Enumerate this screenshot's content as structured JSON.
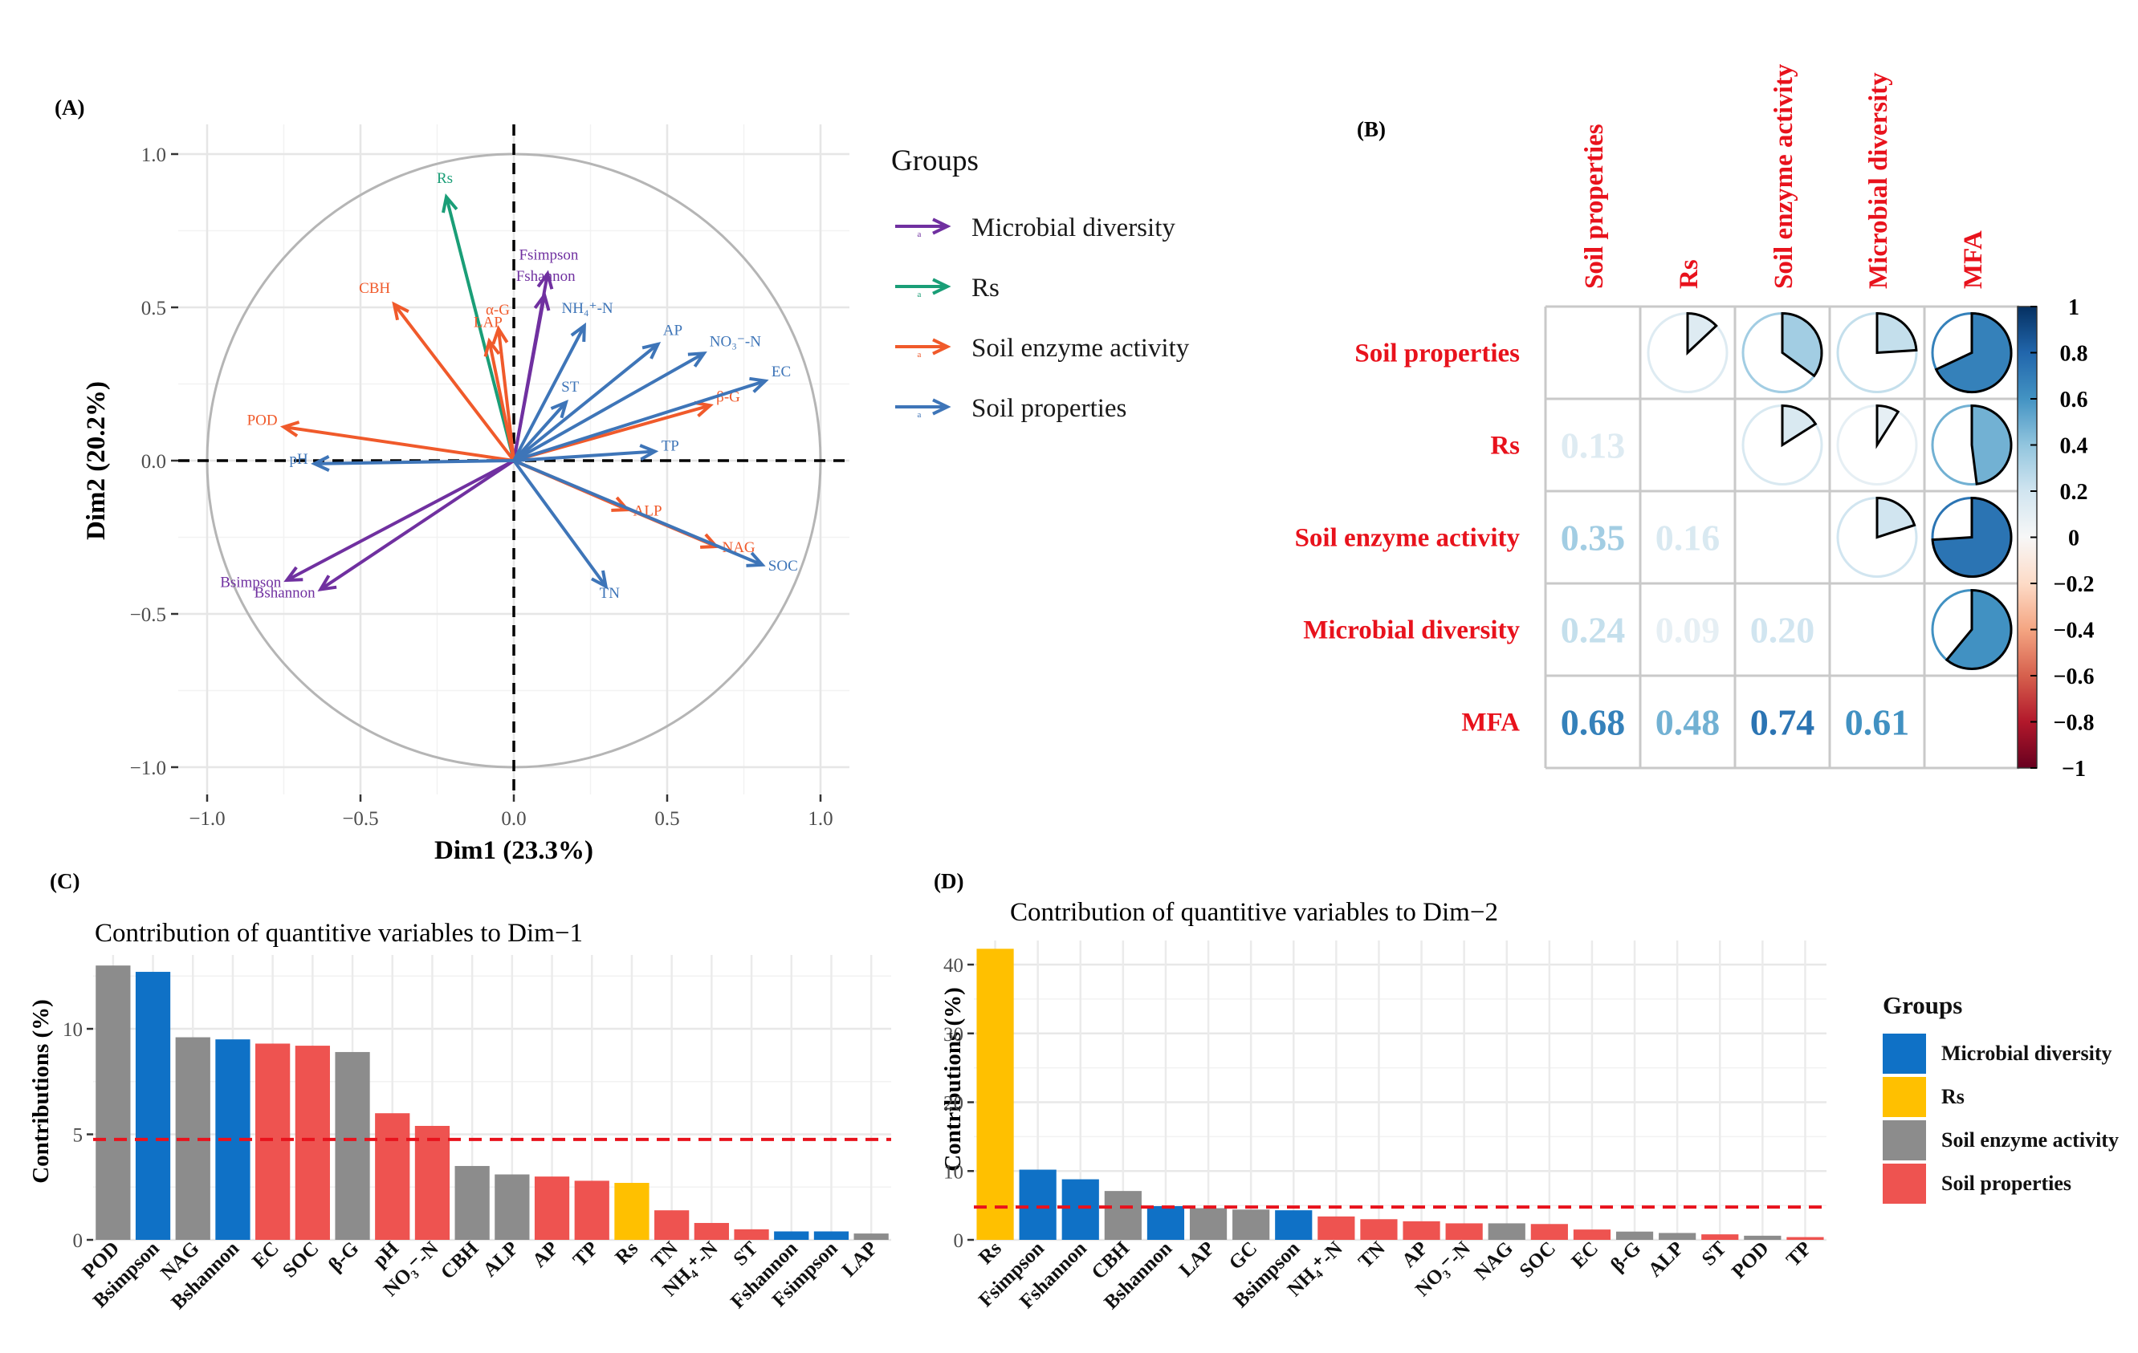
{
  "panel_labels": {
    "a": "(A)",
    "b": "(B)",
    "c": "(C)",
    "d": "(D)"
  },
  "colors": {
    "microbial": "#7030A0",
    "rs": "#1A9E77",
    "enzyme": "#F05A2B",
    "soil": "#3E75B8",
    "bar_microbial": "#0F71C6",
    "bar_rs": "#FFC000",
    "bar_enzyme": "#8C8C8C",
    "bar_soil": "#EE5350",
    "label_red": "#E8121C",
    "dash_red": "#E8121C"
  },
  "chart_data": [
    {
      "type": "scatter",
      "panel": "A",
      "subtype": "pca-correlation-circle",
      "xlabel": "Dim1 (23.3%)",
      "ylabel": "Dim2 (20.2%)",
      "xlim": [
        -1.0,
        1.0
      ],
      "ylim": [
        -1.0,
        1.0
      ],
      "x_ticks": [
        "−1.0",
        "−0.5",
        "0.0",
        "0.5",
        "1.0"
      ],
      "y_ticks": [
        "1.0",
        "0.5",
        "0.0",
        "−0.5",
        "−1.0"
      ],
      "legend": {
        "title": "Groups",
        "items": [
          {
            "label": "Microbial diversity",
            "group": "microbial"
          },
          {
            "label": "Rs",
            "group": "rs"
          },
          {
            "label": "Soil enzyme activity",
            "group": "enzyme"
          },
          {
            "label": "Soil properties",
            "group": "soil"
          }
        ]
      },
      "vectors": [
        {
          "label": "Rs",
          "group": "rs",
          "x": -0.22,
          "y": 0.86
        },
        {
          "label": "Fsimpson",
          "group": "microbial",
          "x": 0.11,
          "y": 0.61
        },
        {
          "label": "Fshannon",
          "group": "microbial",
          "x": 0.1,
          "y": 0.54
        },
        {
          "label": "Bsimpson",
          "group": "microbial",
          "x": -0.74,
          "y": -0.39
        },
        {
          "label": "Bshannon",
          "group": "microbial",
          "x": -0.63,
          "y": -0.42
        },
        {
          "label": "CBH",
          "group": "enzyme",
          "x": -0.39,
          "y": 0.51
        },
        {
          "label": "α-G",
          "group": "enzyme",
          "x": -0.05,
          "y": 0.43
        },
        {
          "label": "LAP",
          "group": "enzyme",
          "x": -0.08,
          "y": 0.39
        },
        {
          "label": "POD",
          "group": "enzyme",
          "x": -0.75,
          "y": 0.11
        },
        {
          "label": "β-G",
          "group": "enzyme",
          "x": 0.64,
          "y": 0.18
        },
        {
          "label": "ALP",
          "group": "enzyme",
          "x": 0.37,
          "y": -0.16
        },
        {
          "label": "NAG",
          "group": "enzyme",
          "x": 0.66,
          "y": -0.28
        },
        {
          "label": "NH₄⁺-N",
          "group": "soil",
          "x": 0.23,
          "y": 0.44
        },
        {
          "label": "AP",
          "group": "soil",
          "x": 0.47,
          "y": 0.38
        },
        {
          "label": "NO₃⁻-N",
          "group": "soil",
          "x": 0.62,
          "y": 0.35
        },
        {
          "label": "EC",
          "group": "soil",
          "x": 0.82,
          "y": 0.26
        },
        {
          "label": "ST",
          "group": "soil",
          "x": 0.17,
          "y": 0.19
        },
        {
          "label": "TP",
          "group": "soil",
          "x": 0.46,
          "y": 0.03
        },
        {
          "label": "pH",
          "group": "soil",
          "x": -0.65,
          "y": -0.01
        },
        {
          "label": "SOC",
          "group": "soil",
          "x": 0.81,
          "y": -0.34
        },
        {
          "label": "TN",
          "group": "soil",
          "x": 0.3,
          "y": -0.41
        }
      ]
    },
    {
      "type": "heatmap",
      "panel": "B",
      "subtype": "correlation-matrix",
      "variables": [
        "Soil properties",
        "Rs",
        "Soil enzyme activity",
        "Microbial diversity",
        "MFA"
      ],
      "values": [
        [
          null,
          0.13,
          0.35,
          0.24,
          0.68
        ],
        [
          0.13,
          null,
          0.16,
          0.09,
          0.48
        ],
        [
          0.35,
          0.16,
          null,
          0.2,
          0.74
        ],
        [
          0.24,
          0.09,
          0.2,
          null,
          0.61
        ],
        [
          0.68,
          0.48,
          0.74,
          0.61,
          null
        ]
      ],
      "value_labels": [
        [
          "",
          "",
          "",
          "",
          ""
        ],
        [
          "0.13",
          "",
          "",
          "",
          ""
        ],
        [
          "0.35",
          "0.16",
          "",
          "",
          ""
        ],
        [
          "0.24",
          "0.09",
          "0.20",
          "",
          ""
        ],
        [
          "0.68",
          "0.48",
          "0.74",
          "0.61",
          ""
        ]
      ],
      "colorbar": {
        "range": [
          -1,
          1
        ],
        "ticks": [
          "1",
          "0.8",
          "0.6",
          "0.4",
          "0.2",
          "0",
          "−0.2",
          "−0.4",
          "−0.6",
          "−0.8",
          "−1"
        ]
      }
    },
    {
      "type": "bar",
      "panel": "C",
      "title": "Contribution of quantitive variables to Dim−1",
      "ylabel": "Contributions (%)",
      "ylim": [
        0,
        13.5
      ],
      "y_ticks": [
        "0",
        "5",
        "10"
      ],
      "reference_line": 4.76,
      "categories": [
        "POD",
        "Bsimpson",
        "NAG",
        "Bshannon",
        "EC",
        "SOC",
        "β-G",
        "pH",
        "NO₃⁻-N",
        "CBH",
        "ALP",
        "AP",
        "TP",
        "Rs",
        "TN",
        "NH₄⁺-N",
        "ST",
        "Fshannon",
        "Fsimpson",
        "LAP"
      ],
      "values": [
        13.0,
        12.7,
        9.6,
        9.5,
        9.3,
        9.2,
        8.9,
        6.0,
        5.4,
        3.5,
        3.1,
        3.0,
        2.8,
        2.7,
        1.4,
        0.8,
        0.5,
        0.4,
        0.4,
        0.3
      ],
      "groups": [
        "enzyme",
        "microbial",
        "enzyme",
        "microbial",
        "soil",
        "soil",
        "enzyme",
        "soil",
        "soil",
        "enzyme",
        "enzyme",
        "soil",
        "soil",
        "rs",
        "soil",
        "soil",
        "soil",
        "microbial",
        "microbial",
        "enzyme"
      ]
    },
    {
      "type": "bar",
      "panel": "D",
      "title": "Contribution of quantitive variables to Dim−2",
      "ylabel": "Contributions (%)",
      "ylim": [
        0,
        43.5
      ],
      "y_ticks": [
        "0",
        "10",
        "20",
        "30",
        "40"
      ],
      "reference_line": 4.76,
      "categories": [
        "Rs",
        "Fsimpson",
        "Fshannon",
        "CBH",
        "Bshannon",
        "LAP",
        "GC",
        "Bsimpson",
        "NH₄⁺-N",
        "TN",
        "AP",
        "NO₃⁻-N",
        "NAG",
        "SOC",
        "EC",
        "β-G",
        "ALP",
        "ST",
        "POD",
        "TP"
      ],
      "values": [
        42.3,
        10.2,
        8.8,
        7.1,
        4.9,
        4.6,
        4.4,
        4.3,
        3.4,
        3.0,
        2.7,
        2.4,
        2.4,
        2.3,
        1.5,
        1.2,
        1.0,
        0.8,
        0.6,
        0.4
      ],
      "groups": [
        "rs",
        "microbial",
        "microbial",
        "enzyme",
        "microbial",
        "enzyme",
        "enzyme",
        "microbial",
        "soil",
        "soil",
        "soil",
        "soil",
        "enzyme",
        "soil",
        "soil",
        "enzyme",
        "enzyme",
        "soil",
        "enzyme",
        "soil"
      ],
      "legend": {
        "title": "Groups",
        "items": [
          {
            "label": "Microbial diversity",
            "group": "microbial"
          },
          {
            "label": "Rs",
            "group": "rs"
          },
          {
            "label": "Soil enzyme activity",
            "group": "enzyme"
          },
          {
            "label": "Soil properties",
            "group": "soil"
          }
        ]
      }
    }
  ]
}
